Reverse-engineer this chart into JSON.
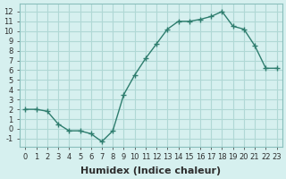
{
  "x": [
    0,
    1,
    2,
    3,
    4,
    5,
    6,
    7,
    8,
    9,
    10,
    11,
    12,
    13,
    14,
    15,
    16,
    17,
    18,
    19,
    20,
    21,
    22,
    23
  ],
  "y": [
    2.0,
    2.0,
    1.8,
    0.5,
    -0.2,
    -0.2,
    -0.5,
    -1.3,
    -0.2,
    3.5,
    5.5,
    7.2,
    8.7,
    10.2,
    11.0,
    11.0,
    11.2,
    11.5,
    12.0,
    10.5,
    10.2,
    8.5,
    6.2,
    6.2
  ],
  "line_color": "#2e7d6e",
  "marker": "+",
  "bg_color": "#d6f0ef",
  "grid_color": "#b0d8d5",
  "xlabel": "Humidex (Indice chaleur)",
  "xlim": [
    -0.5,
    23.5
  ],
  "ylim": [
    -1.8,
    12.8
  ],
  "xtick_positions": [
    0,
    1,
    2,
    3,
    4,
    5,
    6,
    7,
    8,
    9,
    10,
    11,
    12,
    13,
    14,
    15,
    16,
    17,
    18,
    19,
    20,
    21,
    22,
    23
  ],
  "xtick_labels": [
    "0",
    "1",
    "2",
    "3",
    "4",
    "5",
    "6",
    "7",
    "8",
    "9",
    "10",
    "11",
    "12",
    "13",
    "14",
    "15",
    "16",
    "17",
    "18",
    "19",
    "20",
    "21",
    "22",
    "23"
  ],
  "yticks": [
    -1,
    0,
    1,
    2,
    3,
    4,
    5,
    6,
    7,
    8,
    9,
    10,
    11,
    12
  ],
  "label_fontsize": 8,
  "tick_fontsize": 6
}
